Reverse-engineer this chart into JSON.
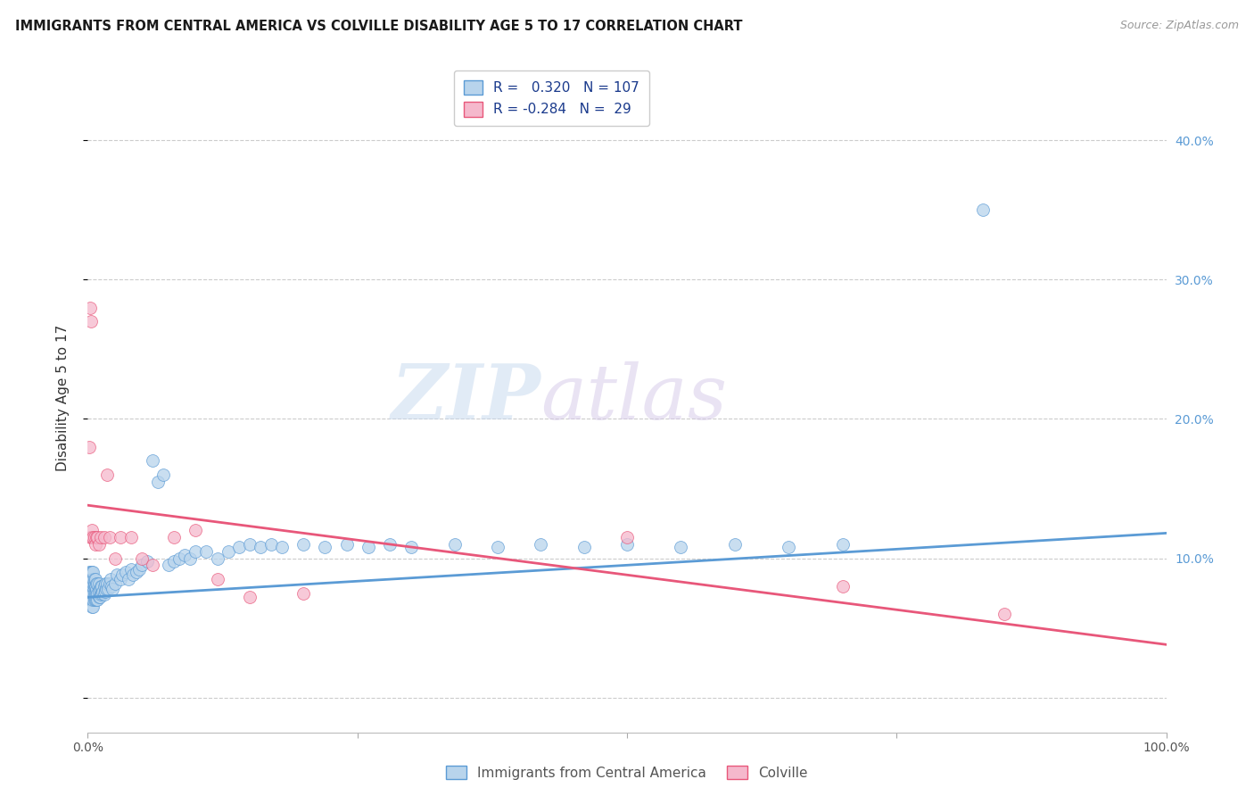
{
  "title": "IMMIGRANTS FROM CENTRAL AMERICA VS COLVILLE DISABILITY AGE 5 TO 17 CORRELATION CHART",
  "source": "Source: ZipAtlas.com",
  "ylabel": "Disability Age 5 to 17",
  "legend_blue_r": "0.320",
  "legend_blue_n": "107",
  "legend_pink_r": "-0.284",
  "legend_pink_n": "29",
  "legend_label_blue": "Immigrants from Central America",
  "legend_label_pink": "Colville",
  "blue_color": "#b8d4ec",
  "pink_color": "#f5b8cc",
  "blue_line_color": "#5b9bd5",
  "pink_line_color": "#e8577a",
  "blue_scatter": {
    "x": [
      0.001,
      0.001,
      0.001,
      0.002,
      0.002,
      0.002,
      0.002,
      0.003,
      0.003,
      0.003,
      0.003,
      0.003,
      0.004,
      0.004,
      0.004,
      0.004,
      0.004,
      0.004,
      0.005,
      0.005,
      0.005,
      0.005,
      0.005,
      0.005,
      0.005,
      0.006,
      0.006,
      0.006,
      0.006,
      0.006,
      0.007,
      0.007,
      0.007,
      0.007,
      0.008,
      0.008,
      0.008,
      0.008,
      0.009,
      0.009,
      0.009,
      0.01,
      0.01,
      0.01,
      0.011,
      0.011,
      0.012,
      0.012,
      0.013,
      0.013,
      0.014,
      0.015,
      0.015,
      0.016,
      0.016,
      0.017,
      0.018,
      0.019,
      0.02,
      0.021,
      0.022,
      0.023,
      0.025,
      0.027,
      0.03,
      0.032,
      0.035,
      0.038,
      0.04,
      0.042,
      0.045,
      0.048,
      0.05,
      0.055,
      0.06,
      0.065,
      0.07,
      0.075,
      0.08,
      0.085,
      0.09,
      0.095,
      0.1,
      0.11,
      0.12,
      0.13,
      0.14,
      0.15,
      0.16,
      0.17,
      0.18,
      0.2,
      0.22,
      0.24,
      0.26,
      0.28,
      0.3,
      0.34,
      0.38,
      0.42,
      0.46,
      0.5,
      0.55,
      0.6,
      0.65,
      0.7,
      0.83
    ],
    "y": [
      0.075,
      0.08,
      0.09,
      0.07,
      0.075,
      0.08,
      0.085,
      0.07,
      0.075,
      0.08,
      0.085,
      0.09,
      0.065,
      0.07,
      0.075,
      0.08,
      0.085,
      0.09,
      0.065,
      0.07,
      0.075,
      0.08,
      0.082,
      0.085,
      0.09,
      0.07,
      0.075,
      0.08,
      0.082,
      0.085,
      0.07,
      0.075,
      0.08,
      0.085,
      0.07,
      0.075,
      0.078,
      0.082,
      0.07,
      0.075,
      0.082,
      0.072,
      0.076,
      0.082,
      0.072,
      0.078,
      0.074,
      0.08,
      0.075,
      0.08,
      0.076,
      0.074,
      0.08,
      0.076,
      0.082,
      0.078,
      0.082,
      0.078,
      0.082,
      0.085,
      0.08,
      0.078,
      0.082,
      0.088,
      0.085,
      0.088,
      0.09,
      0.085,
      0.092,
      0.088,
      0.09,
      0.092,
      0.095,
      0.098,
      0.17,
      0.155,
      0.16,
      0.095,
      0.098,
      0.1,
      0.102,
      0.1,
      0.105,
      0.105,
      0.1,
      0.105,
      0.108,
      0.11,
      0.108,
      0.11,
      0.108,
      0.11,
      0.108,
      0.11,
      0.108,
      0.11,
      0.108,
      0.11,
      0.108,
      0.11,
      0.108,
      0.11,
      0.108,
      0.11,
      0.108,
      0.11,
      0.35
    ]
  },
  "pink_scatter": {
    "x": [
      0.001,
      0.002,
      0.002,
      0.003,
      0.004,
      0.004,
      0.005,
      0.006,
      0.007,
      0.008,
      0.009,
      0.01,
      0.012,
      0.015,
      0.018,
      0.02,
      0.025,
      0.03,
      0.04,
      0.05,
      0.06,
      0.08,
      0.1,
      0.12,
      0.15,
      0.2,
      0.5,
      0.7,
      0.85
    ],
    "y": [
      0.18,
      0.115,
      0.28,
      0.27,
      0.115,
      0.12,
      0.115,
      0.115,
      0.11,
      0.115,
      0.115,
      0.11,
      0.115,
      0.115,
      0.16,
      0.115,
      0.1,
      0.115,
      0.115,
      0.1,
      0.095,
      0.115,
      0.12,
      0.085,
      0.072,
      0.075,
      0.115,
      0.08,
      0.06
    ]
  },
  "blue_line": {
    "x0": 0.0,
    "x1": 1.0,
    "y0": 0.072,
    "y1": 0.118
  },
  "pink_line": {
    "x0": 0.0,
    "x1": 1.0,
    "y0": 0.138,
    "y1": 0.038
  },
  "xlim": [
    0.0,
    1.0
  ],
  "ylim": [
    -0.025,
    0.455
  ],
  "yticks": [
    0.0,
    0.1,
    0.2,
    0.3,
    0.4
  ],
  "ytick_labels_right": [
    "",
    "10.0%",
    "20.0%",
    "30.0%",
    "40.0%"
  ],
  "xticks": [
    0.0,
    0.25,
    0.5,
    0.75,
    1.0
  ],
  "xtick_labels": [
    "0.0%",
    "",
    "",
    "",
    "100.0%"
  ],
  "grid_color": "#cccccc",
  "watermark_zip": "ZIP",
  "watermark_atlas": "atlas",
  "background_color": "#ffffff"
}
